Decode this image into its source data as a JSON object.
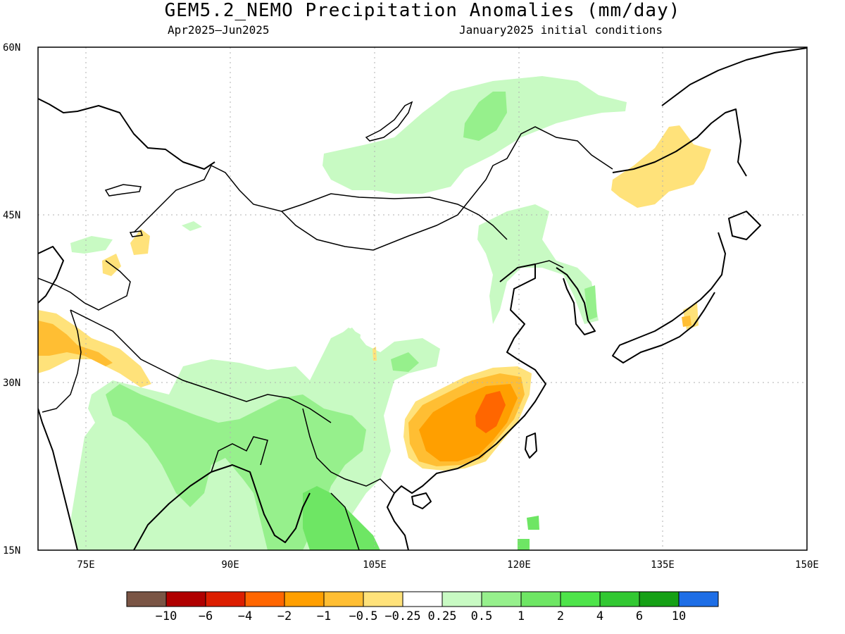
{
  "title": "GEM5.2_NEMO Precipitation Anomalies (mm/day)",
  "subtitle_left": "Apr2025–Jun2025",
  "subtitle_right": "January2025 initial conditions",
  "map": {
    "lon_range": [
      70,
      150
    ],
    "lat_range": [
      15,
      60
    ],
    "lat_labels": [
      "60N",
      "45N",
      "30N",
      "15N"
    ],
    "lon_labels": [
      "75E",
      "90E",
      "105E",
      "120E",
      "135E",
      "150E"
    ]
  },
  "colorbar": {
    "colors": [
      "#7a5545",
      "#b00000",
      "#dc1e00",
      "#ff6600",
      "#ff9f00",
      "#ffbe33",
      "#ffe27a",
      "#ffffff",
      "#c8fac3",
      "#96f08c",
      "#6ee664",
      "#4ee44a",
      "#32c832",
      "#15a015",
      "#1e6ee6"
    ],
    "tick_labels": [
      "−10",
      "−6",
      "−4",
      "−2",
      "−1",
      "−0.5",
      "−0.25",
      "0.25",
      "0.5",
      "1",
      "2",
      "4",
      "6",
      "10"
    ]
  },
  "legend_colors": {
    "light_green": "#c8fac3",
    "mid_green": "#96f08c",
    "green": "#6ee664",
    "light_yellow": "#ffe27a",
    "yellow_orange": "#ffbe33",
    "orange": "#ff9f00",
    "dark_orange": "#ff6600"
  }
}
